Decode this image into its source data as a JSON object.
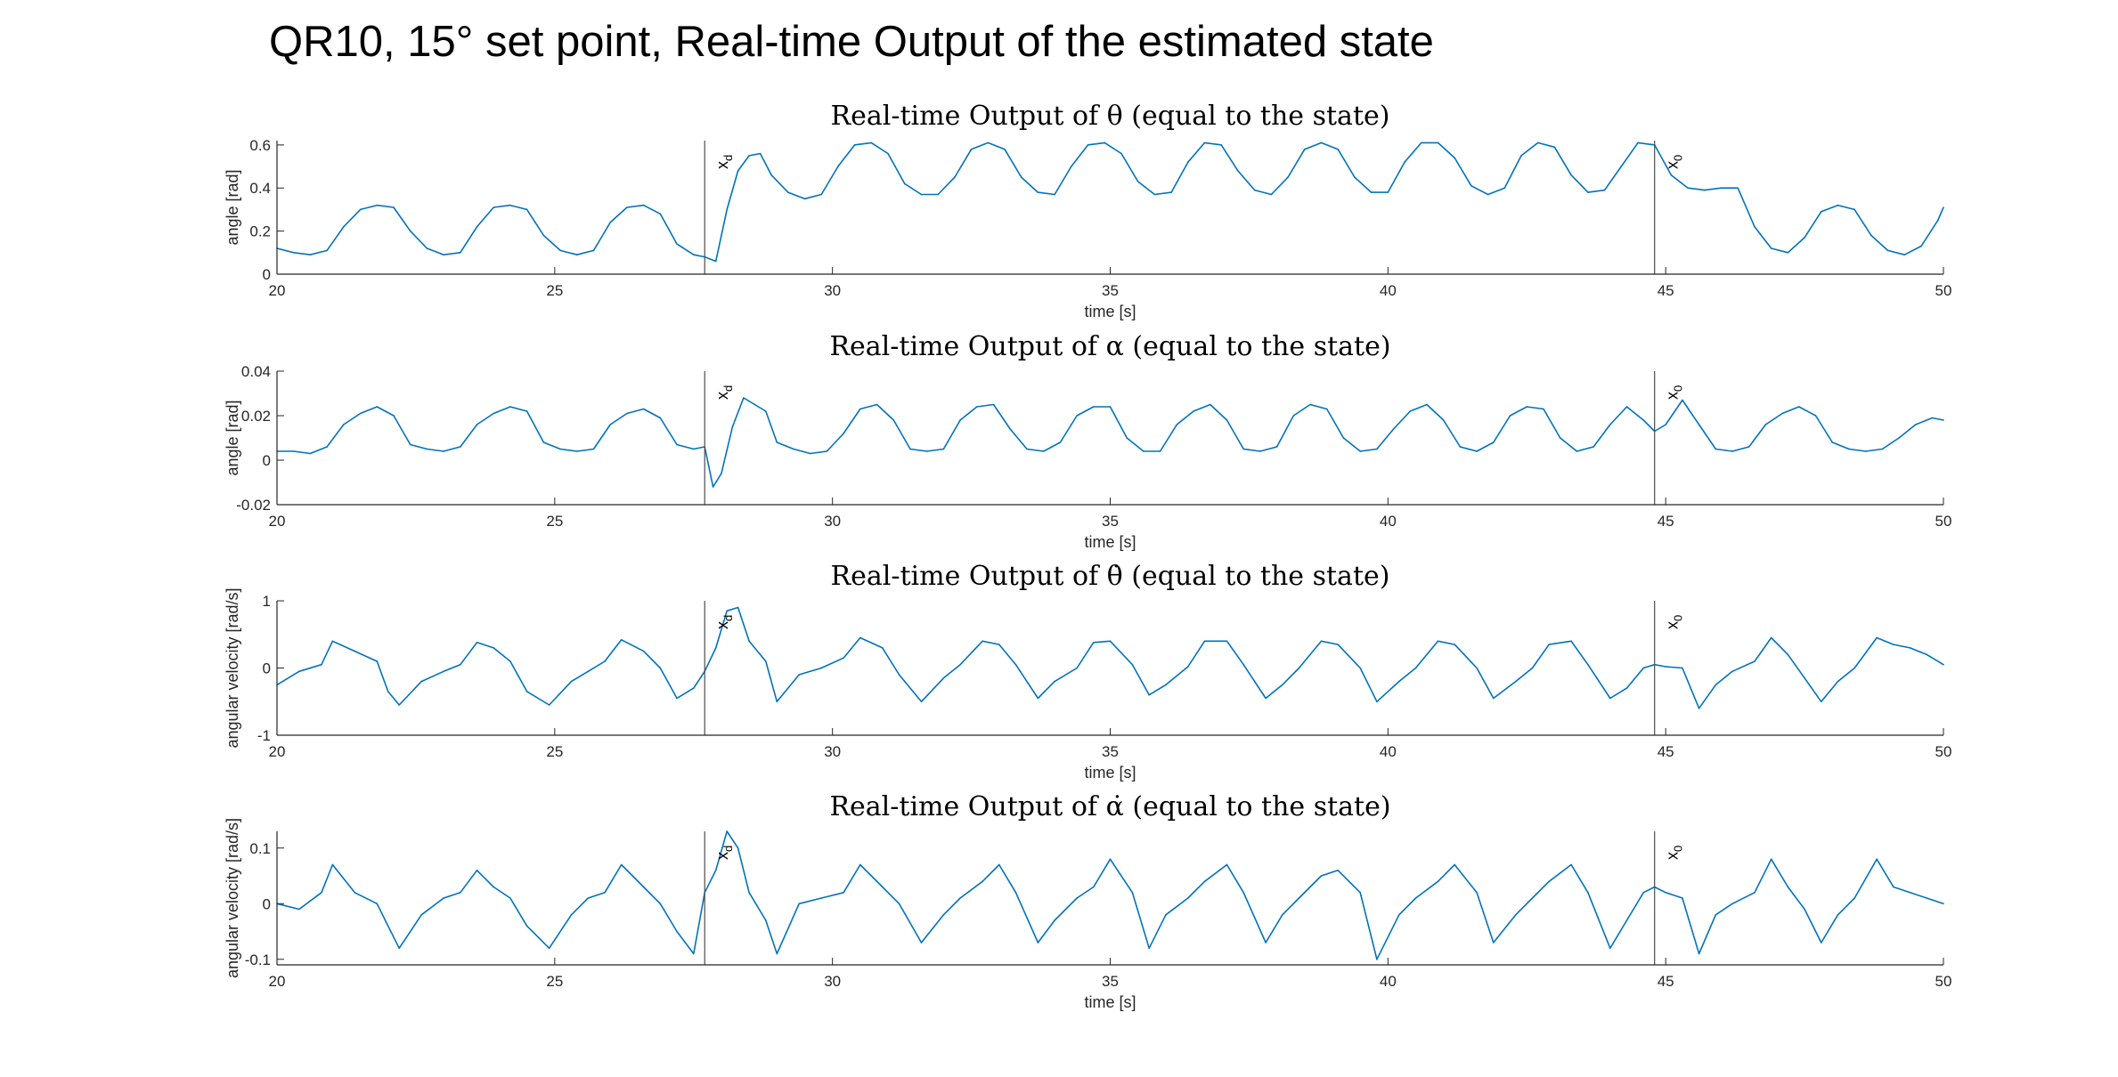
{
  "figure_title": "QR10, 15° set point, Real-time Output of the estimated state",
  "colors": {
    "series": "#0072BD",
    "axis": "#262626",
    "marker_line": "#4d4d4d"
  },
  "chart_data": [
    {
      "type": "line",
      "title": "Real-time Output of θ (equal to the state)",
      "xlabel": "time [s]",
      "ylabel": "angle [rad]",
      "xlim": [
        20,
        50
      ],
      "ylim": [
        0,
        0.62
      ],
      "xticks": [
        20,
        25,
        30,
        35,
        40,
        45,
        50
      ],
      "yticks": [
        0,
        0.2,
        0.4,
        0.6
      ],
      "ytick_labels": [
        "0",
        "0.2",
        "0.4",
        "0.6"
      ],
      "grid": false,
      "markers": [
        {
          "x": 27.7,
          "label": "x_d"
        },
        {
          "x": 44.8,
          "label": "x_0"
        }
      ],
      "x": [
        20.0,
        20.3,
        20.6,
        20.9,
        21.2,
        21.5,
        21.8,
        22.1,
        22.4,
        22.7,
        23.0,
        23.3,
        23.6,
        23.9,
        24.2,
        24.5,
        24.8,
        25.1,
        25.4,
        25.7,
        26.0,
        26.3,
        26.6,
        26.9,
        27.2,
        27.5,
        27.7,
        27.9,
        28.1,
        28.3,
        28.5,
        28.7,
        28.9,
        29.2,
        29.5,
        29.8,
        30.1,
        30.4,
        30.7,
        31.0,
        31.3,
        31.6,
        31.9,
        32.2,
        32.5,
        32.8,
        33.1,
        33.4,
        33.7,
        34.0,
        34.3,
        34.6,
        34.9,
        35.2,
        35.5,
        35.8,
        36.1,
        36.4,
        36.7,
        37.0,
        37.3,
        37.6,
        37.9,
        38.2,
        38.5,
        38.8,
        39.1,
        39.4,
        39.7,
        40.0,
        40.3,
        40.6,
        40.9,
        41.2,
        41.5,
        41.8,
        42.1,
        42.4,
        42.7,
        43.0,
        43.3,
        43.6,
        43.9,
        44.2,
        44.5,
        44.8,
        45.1,
        45.4,
        45.7,
        46.0,
        46.3,
        46.6,
        46.9,
        47.2,
        47.5,
        47.8,
        48.1,
        48.4,
        48.7,
        49.0,
        49.3,
        49.6,
        49.9,
        50.0
      ],
      "values": [
        0.12,
        0.1,
        0.09,
        0.11,
        0.22,
        0.3,
        0.32,
        0.31,
        0.2,
        0.12,
        0.09,
        0.1,
        0.22,
        0.31,
        0.32,
        0.3,
        0.18,
        0.11,
        0.09,
        0.11,
        0.24,
        0.31,
        0.32,
        0.28,
        0.14,
        0.09,
        0.08,
        0.06,
        0.3,
        0.48,
        0.55,
        0.56,
        0.46,
        0.38,
        0.35,
        0.37,
        0.5,
        0.6,
        0.61,
        0.56,
        0.42,
        0.37,
        0.37,
        0.45,
        0.58,
        0.61,
        0.58,
        0.45,
        0.38,
        0.37,
        0.5,
        0.6,
        0.61,
        0.56,
        0.43,
        0.37,
        0.38,
        0.52,
        0.61,
        0.6,
        0.48,
        0.39,
        0.37,
        0.45,
        0.58,
        0.61,
        0.58,
        0.45,
        0.38,
        0.38,
        0.52,
        0.61,
        0.61,
        0.54,
        0.41,
        0.37,
        0.4,
        0.55,
        0.61,
        0.59,
        0.46,
        0.38,
        0.39,
        0.5,
        0.61,
        0.6,
        0.46,
        0.4,
        0.39,
        0.4,
        0.4,
        0.22,
        0.12,
        0.1,
        0.17,
        0.29,
        0.32,
        0.3,
        0.18,
        0.11,
        0.09,
        0.13,
        0.25,
        0.31
      ]
    },
    {
      "type": "line",
      "title": "Real-time Output of α (equal to the state)",
      "xlabel": "time [s]",
      "ylabel": "angle [rad]",
      "xlim": [
        20,
        50
      ],
      "ylim": [
        -0.02,
        0.04
      ],
      "xticks": [
        20,
        25,
        30,
        35,
        40,
        45,
        50
      ],
      "yticks": [
        -0.02,
        0,
        0.02,
        0.04
      ],
      "ytick_labels": [
        "-0.02",
        "0",
        "0.02",
        "0.04"
      ],
      "grid": false,
      "markers": [
        {
          "x": 27.7,
          "label": "x_d"
        },
        {
          "x": 44.8,
          "label": "x_0"
        }
      ],
      "x": [
        20.0,
        20.3,
        20.6,
        20.9,
        21.2,
        21.5,
        21.8,
        22.1,
        22.4,
        22.7,
        23.0,
        23.3,
        23.6,
        23.9,
        24.2,
        24.5,
        24.8,
        25.1,
        25.4,
        25.7,
        26.0,
        26.3,
        26.6,
        26.9,
        27.2,
        27.5,
        27.7,
        27.85,
        28.0,
        28.2,
        28.4,
        28.6,
        28.8,
        29.0,
        29.3,
        29.6,
        29.9,
        30.2,
        30.5,
        30.8,
        31.1,
        31.4,
        31.7,
        32.0,
        32.3,
        32.6,
        32.9,
        33.2,
        33.5,
        33.8,
        34.1,
        34.4,
        34.7,
        35.0,
        35.3,
        35.6,
        35.9,
        36.2,
        36.5,
        36.8,
        37.1,
        37.4,
        37.7,
        38.0,
        38.3,
        38.6,
        38.9,
        39.2,
        39.5,
        39.8,
        40.1,
        40.4,
        40.7,
        41.0,
        41.3,
        41.6,
        41.9,
        42.2,
        42.5,
        42.8,
        43.1,
        43.4,
        43.7,
        44.0,
        44.3,
        44.6,
        44.8,
        45.0,
        45.3,
        45.6,
        45.9,
        46.2,
        46.5,
        46.8,
        47.1,
        47.4,
        47.7,
        48.0,
        48.3,
        48.6,
        48.9,
        49.2,
        49.5,
        49.8,
        50.0
      ],
      "values": [
        0.004,
        0.004,
        0.003,
        0.006,
        0.016,
        0.021,
        0.024,
        0.02,
        0.007,
        0.005,
        0.004,
        0.006,
        0.016,
        0.021,
        0.024,
        0.022,
        0.008,
        0.005,
        0.004,
        0.005,
        0.016,
        0.021,
        0.023,
        0.019,
        0.007,
        0.005,
        0.006,
        -0.012,
        -0.006,
        0.015,
        0.028,
        0.025,
        0.022,
        0.008,
        0.005,
        0.003,
        0.004,
        0.012,
        0.023,
        0.025,
        0.018,
        0.005,
        0.004,
        0.005,
        0.018,
        0.024,
        0.025,
        0.014,
        0.005,
        0.004,
        0.008,
        0.02,
        0.024,
        0.024,
        0.01,
        0.004,
        0.004,
        0.016,
        0.022,
        0.025,
        0.018,
        0.005,
        0.004,
        0.006,
        0.02,
        0.025,
        0.023,
        0.01,
        0.004,
        0.005,
        0.014,
        0.022,
        0.025,
        0.018,
        0.006,
        0.004,
        0.008,
        0.02,
        0.024,
        0.023,
        0.01,
        0.004,
        0.006,
        0.016,
        0.024,
        0.018,
        0.013,
        0.016,
        0.027,
        0.016,
        0.005,
        0.004,
        0.006,
        0.016,
        0.021,
        0.024,
        0.02,
        0.008,
        0.005,
        0.004,
        0.005,
        0.01,
        0.016,
        0.019,
        0.018
      ]
    },
    {
      "type": "line",
      "title": "Real-time Output of θ̇ (equal to the state)",
      "xlabel": "time [s]",
      "ylabel": "angular velocity [rad/s]",
      "xlim": [
        20,
        50
      ],
      "ylim": [
        -1,
        1
      ],
      "xticks": [
        20,
        25,
        30,
        35,
        40,
        45,
        50
      ],
      "yticks": [
        -1,
        0,
        1
      ],
      "ytick_labels": [
        "-1",
        "0",
        "1"
      ],
      "grid": false,
      "markers": [
        {
          "x": 27.7,
          "label": "x_d"
        },
        {
          "x": 44.8,
          "label": "x_0"
        }
      ],
      "x": [
        20.0,
        20.4,
        20.8,
        21.0,
        21.4,
        21.8,
        22.0,
        22.2,
        22.6,
        23.0,
        23.3,
        23.6,
        23.9,
        24.2,
        24.5,
        24.9,
        25.3,
        25.6,
        25.9,
        26.2,
        26.6,
        26.9,
        27.2,
        27.5,
        27.7,
        27.9,
        28.1,
        28.3,
        28.5,
        28.8,
        29.0,
        29.4,
        29.8,
        30.2,
        30.5,
        30.9,
        31.2,
        31.6,
        32.0,
        32.3,
        32.7,
        33.0,
        33.3,
        33.7,
        34.0,
        34.4,
        34.7,
        35.0,
        35.4,
        35.7,
        36.0,
        36.4,
        36.7,
        37.1,
        37.4,
        37.8,
        38.1,
        38.4,
        38.8,
        39.1,
        39.5,
        39.8,
        40.2,
        40.5,
        40.9,
        41.2,
        41.6,
        41.9,
        42.3,
        42.6,
        42.9,
        43.3,
        43.6,
        44.0,
        44.3,
        44.6,
        44.8,
        45.0,
        45.3,
        45.6,
        45.9,
        46.2,
        46.6,
        46.9,
        47.2,
        47.5,
        47.8,
        48.1,
        48.4,
        48.8,
        49.1,
        49.4,
        49.7,
        50.0
      ],
      "values": [
        -0.25,
        -0.05,
        0.05,
        0.4,
        0.25,
        0.1,
        -0.35,
        -0.55,
        -0.2,
        -0.05,
        0.05,
        0.38,
        0.3,
        0.1,
        -0.35,
        -0.55,
        -0.2,
        -0.05,
        0.1,
        0.42,
        0.25,
        0.0,
        -0.45,
        -0.3,
        -0.05,
        0.3,
        0.85,
        0.9,
        0.4,
        0.1,
        -0.5,
        -0.1,
        0.0,
        0.15,
        0.45,
        0.3,
        -0.1,
        -0.5,
        -0.15,
        0.05,
        0.4,
        0.35,
        0.05,
        -0.45,
        -0.2,
        0.0,
        0.38,
        0.4,
        0.05,
        -0.4,
        -0.25,
        0.02,
        0.4,
        0.4,
        0.05,
        -0.45,
        -0.25,
        0.0,
        0.4,
        0.35,
        0.0,
        -0.5,
        -0.2,
        0.0,
        0.4,
        0.35,
        0.0,
        -0.45,
        -0.2,
        0.0,
        0.35,
        0.4,
        0.05,
        -0.45,
        -0.3,
        0.0,
        0.05,
        0.02,
        0.0,
        -0.6,
        -0.25,
        -0.05,
        0.1,
        0.45,
        0.2,
        -0.15,
        -0.5,
        -0.2,
        0.0,
        0.45,
        0.35,
        0.3,
        0.2,
        0.05
      ]
    },
    {
      "type": "line",
      "title": "Real-time Output of α̇ (equal to the state)",
      "xlabel": "time [s]",
      "ylabel": "angular velocity [rad/s]",
      "xlim": [
        20,
        50
      ],
      "ylim": [
        -0.11,
        0.13
      ],
      "xticks": [
        20,
        25,
        30,
        35,
        40,
        45,
        50
      ],
      "yticks": [
        -0.1,
        0,
        0.1
      ],
      "ytick_labels": [
        "-0.1",
        "0",
        "0.1"
      ],
      "grid": false,
      "markers": [
        {
          "x": 27.7,
          "label": "x_d"
        },
        {
          "x": 44.8,
          "label": "x_0"
        }
      ],
      "x": [
        20.0,
        20.4,
        20.8,
        21.0,
        21.4,
        21.8,
        22.0,
        22.2,
        22.6,
        23.0,
        23.3,
        23.6,
        23.9,
        24.2,
        24.5,
        24.9,
        25.3,
        25.6,
        25.9,
        26.2,
        26.6,
        26.9,
        27.2,
        27.5,
        27.7,
        27.9,
        28.1,
        28.3,
        28.5,
        28.8,
        29.0,
        29.4,
        29.8,
        30.2,
        30.5,
        30.9,
        31.2,
        31.6,
        32.0,
        32.3,
        32.7,
        33.0,
        33.3,
        33.7,
        34.0,
        34.4,
        34.7,
        35.0,
        35.4,
        35.7,
        36.0,
        36.4,
        36.7,
        37.1,
        37.4,
        37.8,
        38.1,
        38.4,
        38.8,
        39.1,
        39.5,
        39.8,
        40.2,
        40.5,
        40.9,
        41.2,
        41.6,
        41.9,
        42.3,
        42.6,
        42.9,
        43.3,
        43.6,
        44.0,
        44.3,
        44.6,
        44.8,
        45.0,
        45.3,
        45.6,
        45.9,
        46.2,
        46.6,
        46.9,
        47.2,
        47.5,
        47.8,
        48.1,
        48.4,
        48.8,
        49.1,
        49.4,
        49.7,
        50.0
      ],
      "values": [
        0.0,
        -0.01,
        0.02,
        0.07,
        0.02,
        0.0,
        -0.04,
        -0.08,
        -0.02,
        0.01,
        0.02,
        0.06,
        0.03,
        0.01,
        -0.04,
        -0.08,
        -0.02,
        0.01,
        0.02,
        0.07,
        0.03,
        0.0,
        -0.05,
        -0.09,
        0.02,
        0.06,
        0.13,
        0.1,
        0.02,
        -0.03,
        -0.09,
        0.0,
        0.01,
        0.02,
        0.07,
        0.03,
        0.0,
        -0.07,
        -0.02,
        0.01,
        0.04,
        0.07,
        0.02,
        -0.07,
        -0.03,
        0.01,
        0.03,
        0.08,
        0.02,
        -0.08,
        -0.02,
        0.01,
        0.04,
        0.07,
        0.02,
        -0.07,
        -0.02,
        0.01,
        0.05,
        0.06,
        0.02,
        -0.1,
        -0.02,
        0.01,
        0.04,
        0.07,
        0.02,
        -0.07,
        -0.02,
        0.01,
        0.04,
        0.07,
        0.02,
        -0.08,
        -0.03,
        0.02,
        0.03,
        0.02,
        0.01,
        -0.09,
        -0.02,
        0.0,
        0.02,
        0.08,
        0.03,
        -0.01,
        -0.07,
        -0.02,
        0.01,
        0.08,
        0.03,
        0.02,
        0.01,
        0.0
      ]
    }
  ]
}
